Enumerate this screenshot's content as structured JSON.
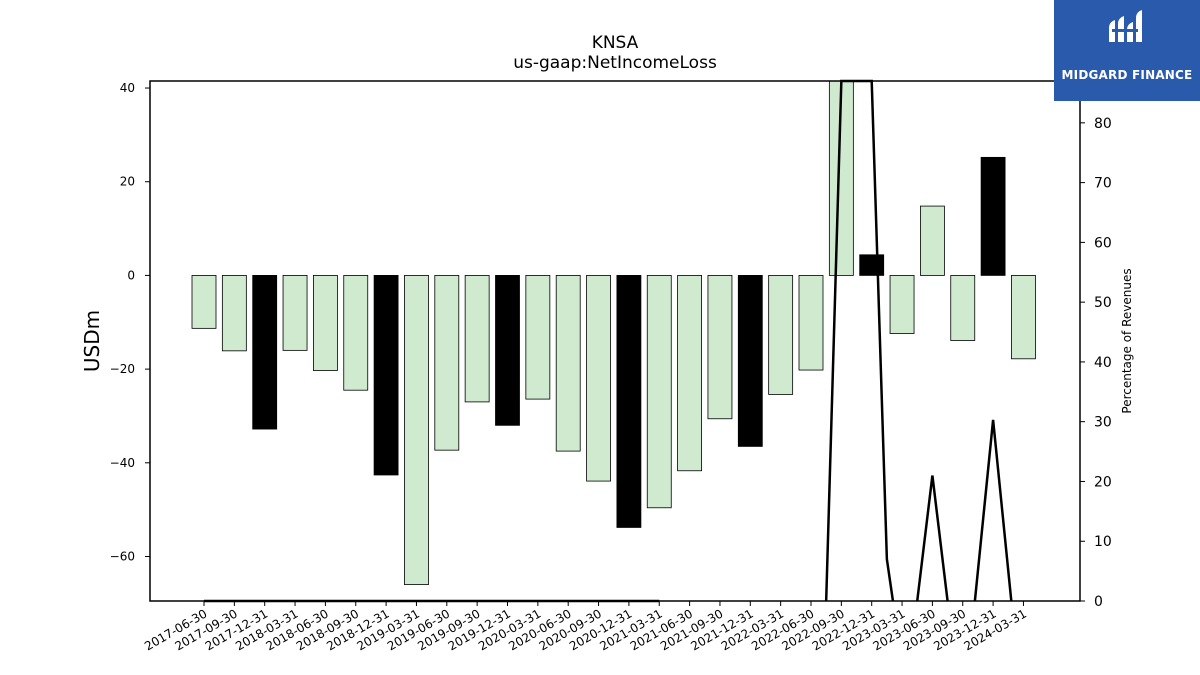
{
  "logo": {
    "text": "MIDGARD FINANCE",
    "background": "#2a5aab"
  },
  "chart_data": {
    "type": "bar",
    "title": "KNSA",
    "subtitle": "us-gaap:NetIncomeLoss",
    "ylabel": "USDm",
    "y2label": "Percentage of Revenues",
    "ylim": [
      -69.5,
      41.5
    ],
    "y2lim": [
      0,
      87
    ],
    "yticks": [
      40,
      20,
      0,
      -20,
      -40,
      -60
    ],
    "y2ticks": [
      0,
      10,
      20,
      30,
      40,
      50,
      60,
      70,
      80
    ],
    "categories": [
      "2017-06-30",
      "2017-09-30",
      "2017-12-31",
      "2018-03-31",
      "2018-06-30",
      "2018-09-30",
      "2018-12-31",
      "2019-03-31",
      "2019-06-30",
      "2019-09-30",
      "2019-12-31",
      "2020-03-31",
      "2020-06-30",
      "2020-09-30",
      "2020-12-31",
      "2021-03-31",
      "2021-06-30",
      "2021-09-30",
      "2021-12-31",
      "2022-03-31",
      "2022-06-30",
      "2022-09-30",
      "2022-12-31",
      "2023-03-31",
      "2023-06-30",
      "2023-09-30",
      "2023-12-31",
      "2024-03-31"
    ],
    "series": [
      {
        "values": [
          -11.3,
          -16.1,
          -32.8,
          -16.0,
          -20.3,
          -24.5,
          -42.6,
          -66.0,
          -37.3,
          -27.0,
          -32.0,
          -26.4,
          -37.5,
          -43.9,
          -53.8,
          -49.6,
          -41.7,
          -30.6,
          -36.5,
          -25.4,
          -20.2,
          41.5,
          4.4,
          -12.4,
          14.8,
          -13.9,
          25.2,
          -17.8
        ],
        "colors": [
          "#d0ead0",
          "#d0ead0",
          "#000000",
          "#d0ead0",
          "#d0ead0",
          "#d0ead0",
          "#000000",
          "#d0ead0",
          "#d0ead0",
          "#d0ead0",
          "#000000",
          "#d0ead0",
          "#d0ead0",
          "#d0ead0",
          "#000000",
          "#d0ead0",
          "#d0ead0",
          "#d0ead0",
          "#000000",
          "#d0ead0",
          "#d0ead0",
          "#d0ead0",
          "#000000",
          "#d0ead0",
          "#d0ead0",
          "#d0ead0",
          "#000000",
          "#d0ead0"
        ]
      },
      {
        "axis": "right",
        "type": "line",
        "color": "#000000",
        "segments": [
          [
            [
              0,
              0
            ],
            [
              15,
              0
            ]
          ],
          [
            [
              20.5,
              0
            ],
            [
              21,
              87
            ],
            [
              22,
              87
            ],
            [
              22.5,
              7
            ],
            [
              22.7,
              0
            ]
          ],
          [
            [
              23.5,
              0
            ],
            [
              24,
              21
            ],
            [
              24.5,
              0
            ]
          ],
          [
            [
              25.4,
              0
            ],
            [
              26,
              30.3
            ],
            [
              26.6,
              0
            ]
          ]
        ]
      }
    ],
    "grid": false
  }
}
